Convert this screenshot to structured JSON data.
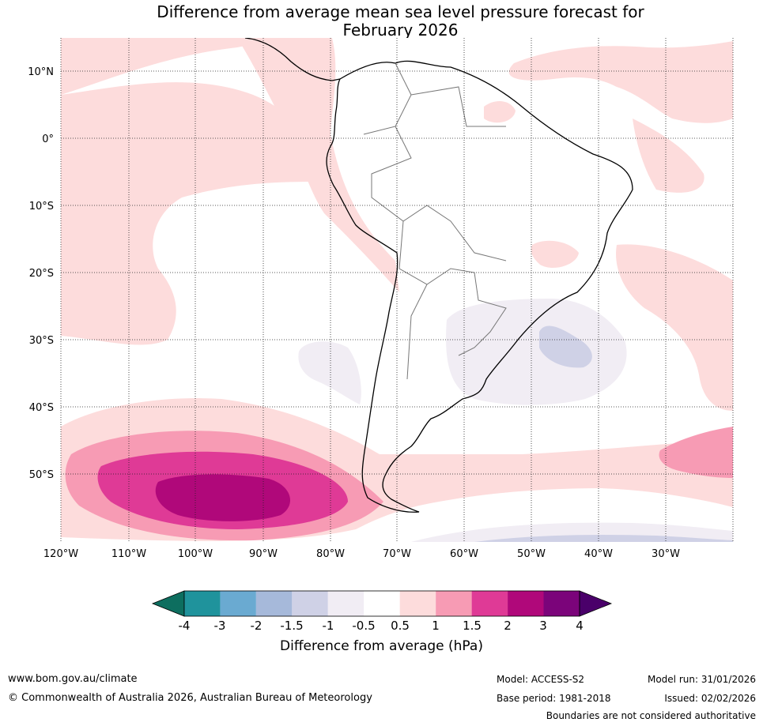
{
  "title": {
    "line1": "Difference from average mean sea level pressure forecast for",
    "line2": "February 2026"
  },
  "map": {
    "lat_labels": [
      "10°N",
      "0°",
      "10°S",
      "20°S",
      "30°S",
      "40°S",
      "50°S"
    ],
    "lon_labels": [
      "120°W",
      "110°W",
      "100°W",
      "90°W",
      "80°W",
      "70°W",
      "60°W",
      "50°W",
      "40°W",
      "30°W"
    ],
    "region": "South America"
  },
  "colorbar": {
    "ticks": [
      "-4",
      "-3",
      "-2",
      "-1.5",
      "-1",
      "-0.5",
      "0.5",
      "1",
      "1.5",
      "2",
      "3",
      "4"
    ],
    "colors": [
      "#0d6e5f",
      "#1f939c",
      "#6aaad1",
      "#a6b9da",
      "#cfd1e6",
      "#f1edf4",
      "#ffffff",
      "#fddcdc",
      "#f79bb4",
      "#df3a96",
      "#b0087a",
      "#7b047a",
      "#4a006a"
    ],
    "label": "Difference from average (hPa)"
  },
  "footer": {
    "website": "www.bom.gov.au/climate",
    "copyright": "© Commonwealth of Australia 2026, Australian Bureau of Meteorology",
    "model": "Model: ACCESS-S2",
    "base_period": "Base period: 1981-2018",
    "model_run": "Model run: 31/01/2026",
    "issued": "Issued: 02/02/2026",
    "disclaimer": "Boundaries are not considered authoritative"
  }
}
